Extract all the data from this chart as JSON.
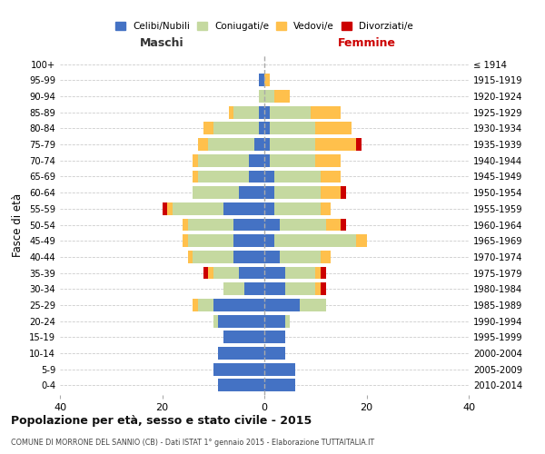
{
  "age_groups": [
    "0-4",
    "5-9",
    "10-14",
    "15-19",
    "20-24",
    "25-29",
    "30-34",
    "35-39",
    "40-44",
    "45-49",
    "50-54",
    "55-59",
    "60-64",
    "65-69",
    "70-74",
    "75-79",
    "80-84",
    "85-89",
    "90-94",
    "95-99",
    "100+"
  ],
  "birth_years": [
    "2010-2014",
    "2005-2009",
    "2000-2004",
    "1995-1999",
    "1990-1994",
    "1985-1989",
    "1980-1984",
    "1975-1979",
    "1970-1974",
    "1965-1969",
    "1960-1964",
    "1955-1959",
    "1950-1954",
    "1945-1949",
    "1940-1944",
    "1935-1939",
    "1930-1934",
    "1925-1929",
    "1920-1924",
    "1915-1919",
    "≤ 1914"
  ],
  "maschi": {
    "celibi": [
      9,
      10,
      9,
      8,
      9,
      10,
      4,
      5,
      6,
      6,
      6,
      8,
      5,
      3,
      3,
      2,
      1,
      1,
      0,
      1,
      0
    ],
    "coniugati": [
      0,
      0,
      0,
      0,
      1,
      3,
      4,
      5,
      8,
      9,
      9,
      10,
      9,
      10,
      10,
      9,
      9,
      5,
      1,
      0,
      0
    ],
    "vedovi": [
      0,
      0,
      0,
      0,
      0,
      1,
      0,
      1,
      1,
      1,
      1,
      1,
      0,
      1,
      1,
      2,
      2,
      1,
      0,
      0,
      0
    ],
    "divorziati": [
      0,
      0,
      0,
      0,
      0,
      0,
      0,
      1,
      0,
      0,
      0,
      1,
      0,
      0,
      0,
      0,
      0,
      0,
      0,
      0,
      0
    ]
  },
  "femmine": {
    "nubili": [
      6,
      6,
      4,
      4,
      4,
      7,
      4,
      4,
      3,
      2,
      3,
      2,
      2,
      2,
      1,
      1,
      1,
      1,
      0,
      0,
      0
    ],
    "coniugate": [
      0,
      0,
      0,
      0,
      1,
      5,
      6,
      6,
      8,
      16,
      9,
      9,
      9,
      9,
      9,
      9,
      9,
      8,
      2,
      0,
      0
    ],
    "vedove": [
      0,
      0,
      0,
      0,
      0,
      0,
      1,
      1,
      2,
      2,
      3,
      2,
      4,
      4,
      5,
      8,
      7,
      6,
      3,
      1,
      0
    ],
    "divorziate": [
      0,
      0,
      0,
      0,
      0,
      0,
      1,
      1,
      0,
      0,
      1,
      0,
      1,
      0,
      0,
      1,
      0,
      0,
      0,
      0,
      0
    ]
  },
  "colors": {
    "celibi_nubili": "#4472c4",
    "coniugati": "#c5d9a0",
    "vedovi": "#ffc04c",
    "divorziati": "#cc0000"
  },
  "xlim": 40,
  "title": "Popolazione per età, sesso e stato civile - 2015",
  "subtitle": "COMUNE DI MORRONE DEL SANNIO (CB) - Dati ISTAT 1° gennaio 2015 - Elaborazione TUTTAITALIA.IT",
  "ylabel": "Fasce di età",
  "label_maschi": "Maschi",
  "label_femmine": "Femmine",
  "legend_labels": [
    "Celibi/Nubili",
    "Coniugati/e",
    "Vedovi/e",
    "Divorziati/e"
  ],
  "bg_color": "#ffffff",
  "grid_color": "#cccccc",
  "femmine_label_color": "#cc0000",
  "maschi_label_color": "#333333"
}
